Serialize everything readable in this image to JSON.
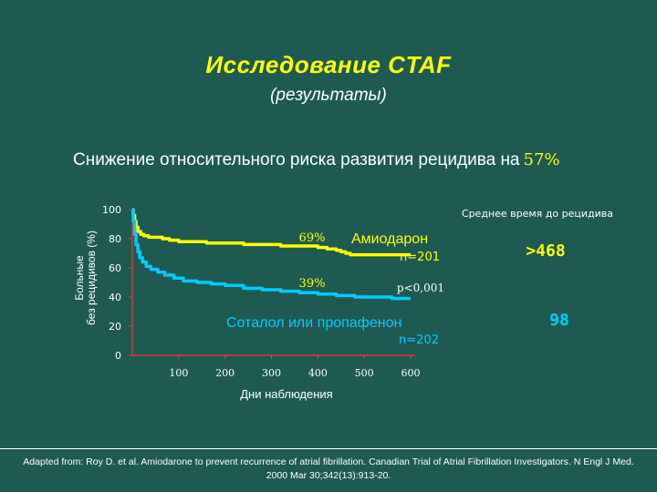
{
  "slide": {
    "title": "Исследование  CTAF",
    "subtitle": "(результаты)",
    "headline": "Снижение относительного риска развития рецидива на",
    "headline_value": "57%",
    "credit_line1": "Adapted from:  Roy D. et al. Amiodarone to prevent recurrence of atrial fibrillation. Canadian Trial of Atrial Fibrillation Investigators.  N Engl J Med.",
    "credit_line2": "2000 Mar 30;342(13):913-20."
  },
  "chart_data": {
    "type": "line",
    "ylabel_line1": "Больные",
    "ylabel_line2": "без рецидивов   (%)",
    "xlabel": "Дни наблюдения",
    "xlim": [
      0,
      600
    ],
    "ylim": [
      0,
      100
    ],
    "y_ticks": [
      "0",
      "20",
      "40",
      "60",
      "80",
      "100"
    ],
    "x_ticks": [
      "100",
      "200",
      "300",
      "400",
      "500",
      "600"
    ],
    "series": [
      {
        "name": "Амиодарон",
        "n_label": "n=201",
        "end_label": "69%",
        "color": "#ffff00",
        "x": [
          0,
          2,
          5,
          8,
          12,
          18,
          25,
          35,
          50,
          65,
          80,
          100,
          130,
          160,
          200,
          240,
          280,
          320,
          360,
          400,
          420,
          440,
          450,
          460,
          470,
          490,
          520,
          560,
          600
        ],
        "y": [
          100,
          96,
          92,
          88,
          85,
          83,
          82,
          81,
          81,
          80,
          79,
          78,
          78,
          77,
          77,
          76,
          76,
          75,
          75,
          74,
          73,
          72,
          71,
          70,
          69,
          69,
          69,
          69,
          69
        ]
      },
      {
        "name": "Соталол  или  пропафенон",
        "n_label": "n=202",
        "end_label": "39%",
        "color": "#00ccff",
        "x": [
          0,
          2,
          5,
          8,
          12,
          16,
          22,
          30,
          40,
          55,
          70,
          90,
          110,
          140,
          170,
          200,
          240,
          280,
          320,
          360,
          400,
          440,
          480,
          520,
          560,
          600
        ],
        "y": [
          100,
          92,
          83,
          76,
          71,
          67,
          64,
          61,
          59,
          57,
          55,
          53,
          51,
          50,
          49,
          48,
          46,
          45,
          44,
          43,
          42,
          41,
          40,
          40,
          39,
          39
        ]
      }
    ],
    "annotations": {
      "median_header": "Среднее время до рецидива",
      "amio_median": ">468",
      "sotalol_median": "98",
      "p_value": "p<0,001"
    }
  }
}
